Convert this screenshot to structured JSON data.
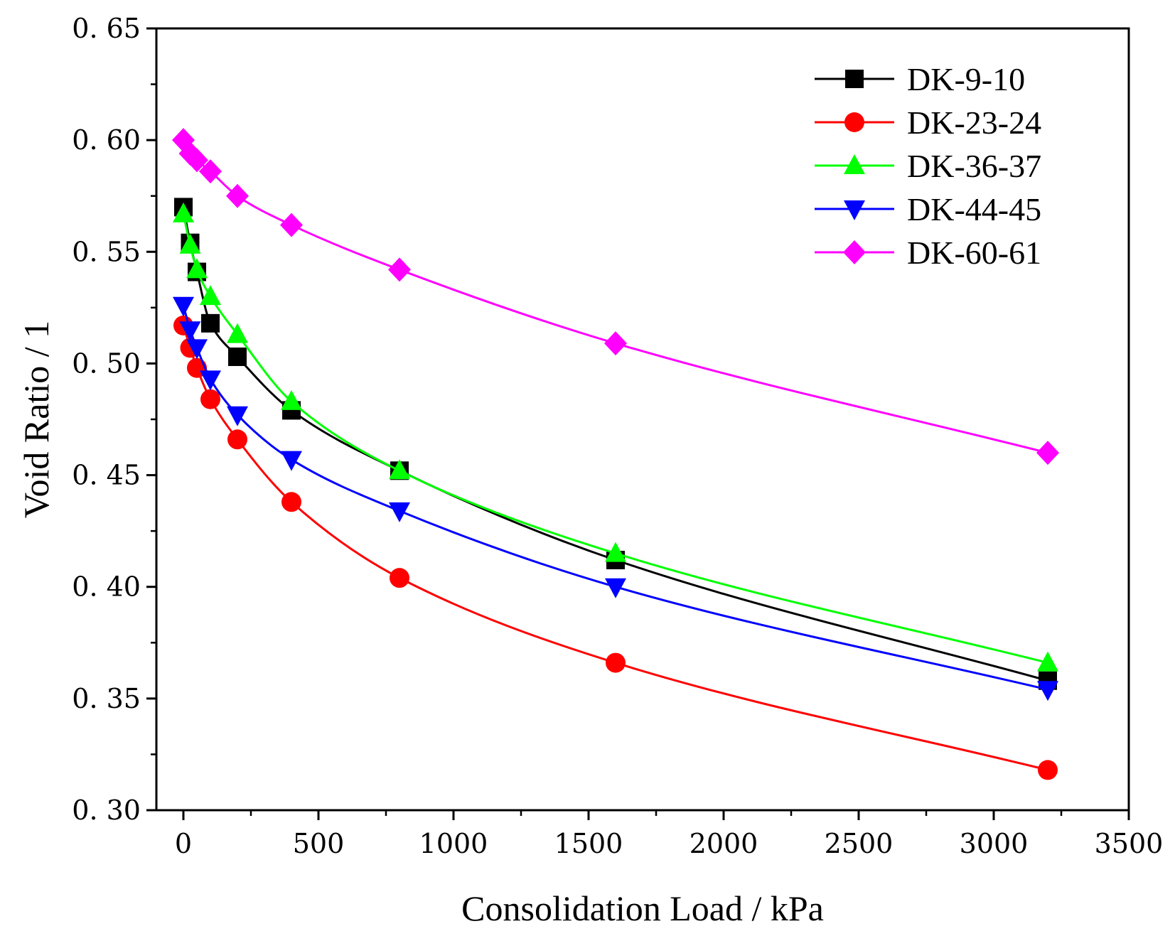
{
  "chart_data": {
    "type": "line",
    "title": "",
    "xlabel": "Consolidation Load / kPa",
    "ylabel": "Void Ratio / 1",
    "xlim": [
      -100,
      3500
    ],
    "ylim": [
      0.3,
      0.65
    ],
    "xticks": [
      0,
      500,
      1000,
      1500,
      2000,
      2500,
      3000,
      3500
    ],
    "yticks": [
      0.3,
      0.35,
      0.4,
      0.45,
      0.5,
      0.55,
      0.6,
      0.65
    ],
    "xtick_labels": [
      "0",
      "500",
      "1000",
      "1500",
      "2000",
      "2500",
      "3000",
      "3500"
    ],
    "ytick_labels": [
      "0. 30",
      "0. 35",
      "0. 40",
      "0. 45",
      "0. 50",
      "0. 55",
      "0. 60",
      "0. 65"
    ],
    "grid": false,
    "legend_position": "top-right",
    "x": [
      0,
      25,
      50,
      100,
      200,
      400,
      800,
      1600,
      3200
    ],
    "series": [
      {
        "name": "DK-9-10",
        "color": "#000000",
        "marker": "square",
        "values": [
          0.57,
          0.554,
          0.541,
          0.518,
          0.503,
          0.479,
          0.452,
          0.412,
          0.358
        ]
      },
      {
        "name": "DK-23-24",
        "color": "#ff0000",
        "marker": "circle",
        "values": [
          0.517,
          0.507,
          0.498,
          0.484,
          0.466,
          0.438,
          0.404,
          0.366,
          0.318
        ]
      },
      {
        "name": "DK-36-37",
        "color": "#00ff00",
        "marker": "triangle-up",
        "values": [
          0.567,
          0.553,
          0.542,
          0.53,
          0.513,
          0.483,
          0.452,
          0.415,
          0.366
        ]
      },
      {
        "name": "DK-44-45",
        "color": "#0000ff",
        "marker": "triangle-down",
        "values": [
          0.526,
          0.515,
          0.507,
          0.493,
          0.477,
          0.457,
          0.434,
          0.4,
          0.354
        ]
      },
      {
        "name": "DK-60-61",
        "color": "#ff00ff",
        "marker": "diamond",
        "values": [
          0.6,
          0.594,
          0.591,
          0.586,
          0.575,
          0.562,
          0.542,
          0.509,
          0.46
        ]
      }
    ]
  }
}
